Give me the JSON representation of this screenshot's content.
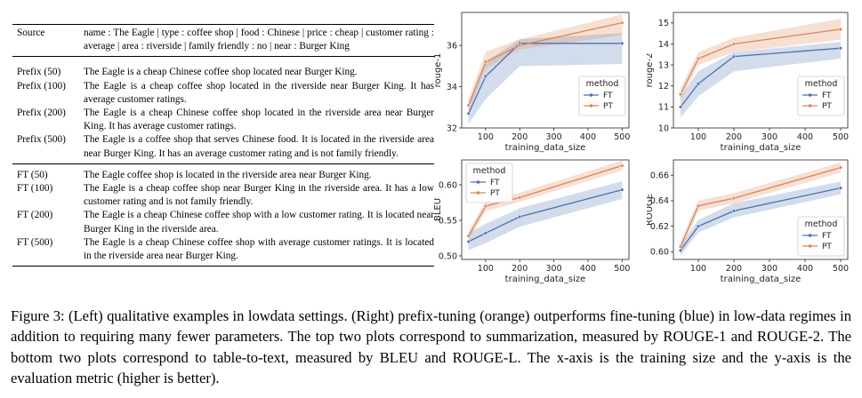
{
  "table": {
    "source": {
      "label": "Source",
      "text": "name : The Eagle | type : coffee shop | food : Chinese | price : cheap | customer rating : average | area : riverside | family friendly : no | near : Burger King"
    },
    "prefix_rows": [
      {
        "label": "Prefix (50)",
        "text": "The Eagle is a cheap Chinese coffee shop located near Burger King."
      },
      {
        "label": "Prefix (100)",
        "text": "The Eagle is a cheap coffee shop located in the riverside near Burger King. It has average customer ratings."
      },
      {
        "label": "Prefix (200)",
        "text": "The Eagle is a cheap Chinese coffee shop located in the riverside area near Burger King. It has average customer ratings."
      },
      {
        "label": "Prefix (500)",
        "text": "The Eagle is a coffee shop that serves Chinese food. It is located in the riverside area near Burger King. It has an average customer rating and is not family friendly."
      }
    ],
    "ft_rows": [
      {
        "label": "FT (50)",
        "text": "The Eagle coffee shop is located in the riverside area near Burger King."
      },
      {
        "label": "FT (100)",
        "text": "The Eagle is a cheap coffee shop near Burger King in the riverside area. It has a low customer rating and is not family friendly."
      },
      {
        "label": "FT (200)",
        "text": "The Eagle is a cheap Chinese coffee shop with a low customer rating. It is located near Burger King in the riverside area."
      },
      {
        "label": "FT (500)",
        "text": "The Eagle is a cheap Chinese coffee shop with average customer ratings. It is located in the riverside area near Burger King."
      }
    ]
  },
  "caption": "Figure 3: (Left) qualitative examples in lowdata settings. (Right) prefix-tuning (orange) outperforms fine-tuning (blue) in low-data regimes in addition to requiring many fewer parameters. The top two plots correspond to summarization, measured by ROUGE-1 and ROUGE-2. The bottom two plots correspond to table-to-text, measured by BLEU and ROUGE-L. The x-axis is the training size and the y-axis is the evaluation metric (higher is better).",
  "colors": {
    "FT": "#4c72b0",
    "PT": "#dd8452"
  },
  "chart_data": [
    {
      "type": "line",
      "xlabel": "training_data_size",
      "ylabel": "rouge-1",
      "x": [
        50,
        100,
        200,
        500
      ],
      "xticks": [
        100,
        200,
        300,
        400,
        500
      ],
      "xlim": [
        30,
        520
      ],
      "yticks": [
        32,
        34,
        36
      ],
      "ylim": [
        32,
        37.6
      ],
      "legend_title": "method",
      "legend_position": "center-right",
      "grid": false,
      "series": [
        {
          "name": "FT",
          "values": [
            32.7,
            34.5,
            36.1,
            36.1
          ],
          "lower": [
            32.2,
            33.4,
            35.0,
            35.1
          ],
          "upper": [
            33.2,
            35.2,
            36.3,
            36.6
          ]
        },
        {
          "name": "PT",
          "values": [
            33.1,
            35.2,
            36.0,
            37.1
          ],
          "lower": [
            32.8,
            34.9,
            35.8,
            36.5
          ],
          "upper": [
            33.4,
            35.7,
            36.3,
            37.5
          ]
        }
      ]
    },
    {
      "type": "line",
      "xlabel": "training_data_size",
      "ylabel": "rouge-2",
      "x": [
        50,
        100,
        200,
        500
      ],
      "xticks": [
        100,
        200,
        300,
        400,
        500
      ],
      "xlim": [
        30,
        520
      ],
      "yticks": [
        10,
        11,
        12,
        13,
        14,
        15
      ],
      "ylim": [
        10,
        15.5
      ],
      "legend_title": "method",
      "legend_position": "center-right",
      "grid": false,
      "series": [
        {
          "name": "FT",
          "values": [
            11.0,
            12.1,
            13.4,
            13.8
          ],
          "lower": [
            10.5,
            11.5,
            12.7,
            13.3
          ],
          "upper": [
            11.5,
            12.7,
            13.6,
            14.1
          ]
        },
        {
          "name": "PT",
          "values": [
            11.6,
            13.3,
            14.0,
            14.7
          ],
          "lower": [
            11.3,
            13.0,
            13.6,
            14.2
          ],
          "upper": [
            11.9,
            13.6,
            14.3,
            15.2
          ]
        }
      ]
    },
    {
      "type": "line",
      "xlabel": "training_data_size",
      "ylabel": "BLEU",
      "x": [
        50,
        100,
        200,
        500
      ],
      "xticks": [
        100,
        200,
        300,
        400,
        500
      ],
      "xlim": [
        30,
        520
      ],
      "yticks": [
        0.5,
        0.55,
        0.6
      ],
      "ylim": [
        0.495,
        0.635
      ],
      "legend_title": "method",
      "legend_position": "top-left",
      "grid": false,
      "series": [
        {
          "name": "FT",
          "values": [
            0.52,
            0.532,
            0.555,
            0.593
          ],
          "lower": [
            0.508,
            0.518,
            0.541,
            0.58
          ],
          "upper": [
            0.532,
            0.545,
            0.567,
            0.605
          ]
        },
        {
          "name": "PT",
          "values": [
            0.528,
            0.57,
            0.582,
            0.627
          ],
          "lower": [
            0.522,
            0.563,
            0.576,
            0.62
          ],
          "upper": [
            0.535,
            0.577,
            0.589,
            0.634
          ]
        }
      ]
    },
    {
      "type": "line",
      "xlabel": "training_data_size",
      "ylabel": "ROUGE",
      "x": [
        50,
        100,
        200,
        500
      ],
      "xticks": [
        100,
        200,
        300,
        400,
        500
      ],
      "xlim": [
        30,
        520
      ],
      "yticks": [
        0.6,
        0.62,
        0.64,
        0.66
      ],
      "ylim": [
        0.594,
        0.672
      ],
      "legend_title": "method",
      "legend_position": "bottom-right",
      "grid": false,
      "series": [
        {
          "name": "FT",
          "values": [
            0.601,
            0.62,
            0.632,
            0.65
          ],
          "lower": [
            0.597,
            0.615,
            0.627,
            0.645
          ],
          "upper": [
            0.605,
            0.625,
            0.638,
            0.655
          ]
        },
        {
          "name": "PT",
          "values": [
            0.604,
            0.636,
            0.642,
            0.666
          ],
          "lower": [
            0.6,
            0.632,
            0.638,
            0.662
          ],
          "upper": [
            0.608,
            0.64,
            0.646,
            0.67
          ]
        }
      ]
    }
  ]
}
